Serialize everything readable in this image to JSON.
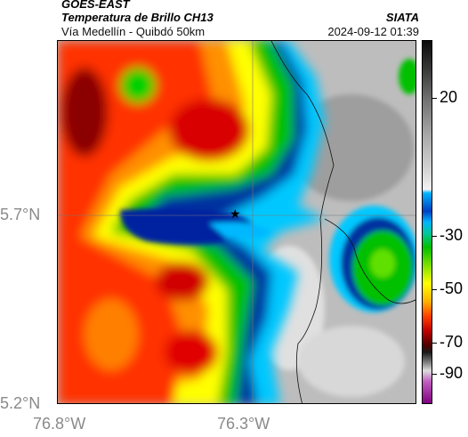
{
  "header": {
    "satellite": "GOES-EAST",
    "product": "Temperatura de Brillo CH13",
    "region": "Vía Medellín - Quibdó 50km",
    "source": "SIATA",
    "datetime": "2024-09-12 01:39"
  },
  "axes": {
    "lat_labels": [
      "5.7°N",
      "5.2°N"
    ],
    "lon_labels": [
      "76.8°W",
      "76.3°W"
    ]
  },
  "colorbar": {
    "labels": [
      "20",
      "-30",
      "-50",
      "-70",
      "-90"
    ],
    "colors": {
      "warm": "#b8b8b8",
      "cold_top": "#0000a0",
      "deep": "#8b0000"
    }
  },
  "map": {
    "marker": "star-icon",
    "marker_lat": 5.7,
    "marker_lon": -76.34
  }
}
